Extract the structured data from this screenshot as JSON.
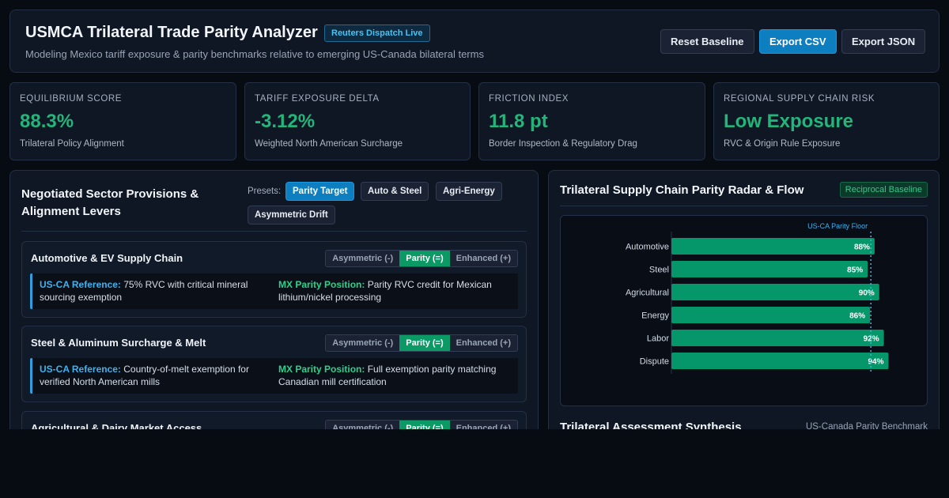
{
  "header": {
    "title": "USMCA Trilateral Trade Parity Analyzer",
    "badge": "Reuters Dispatch Live",
    "subtitle": "Modeling Mexico tariff exposure & parity benchmarks relative to emerging US-Canada bilateral terms",
    "buttons": {
      "reset": "Reset Baseline",
      "export_csv": "Export CSV",
      "export_json": "Export JSON"
    }
  },
  "kpis": [
    {
      "label": "EQUILIBRIUM SCORE",
      "value": "88.3%",
      "desc": "Trilateral Policy Alignment"
    },
    {
      "label": "TARIFF EXPOSURE DELTA",
      "value": "-3.12%",
      "desc": "Weighted North American Surcharge"
    },
    {
      "label": "FRICTION INDEX",
      "value": "11.8 pt",
      "desc": "Border Inspection & Regulatory Drag"
    },
    {
      "label": "REGIONAL SUPPLY CHAIN RISK",
      "value": "Low Exposure",
      "desc": "RVC & Origin Rule Exposure"
    }
  ],
  "levers": {
    "title": "Negotiated Sector Provisions & Alignment Levers",
    "presets_label": "Presets:",
    "presets": [
      "Parity Target",
      "Auto & Steel",
      "Agri-Energy",
      "Asymmetric Drift"
    ],
    "active_preset": "Parity Target",
    "options": [
      "Asymmetric (-)",
      "Parity (=)",
      "Enhanced (+)"
    ],
    "sectors": [
      {
        "title": "Automotive & EV Supply Chain",
        "selected": "Parity (=)",
        "ref_label": "US-CA Reference:",
        "ref_text": " 75% RVC with critical mineral sourcing exemption",
        "mx_label": "MX Parity Position:",
        "mx_text": " Parity RVC credit for Mexican lithium/nickel processing"
      },
      {
        "title": "Steel & Aluminum Surcharge & Melt",
        "selected": "Parity (=)",
        "ref_label": "US-CA Reference:",
        "ref_text": " Country-of-melt exemption for verified North American mills",
        "mx_label": "MX Parity Position:",
        "mx_text": " Full exemption parity matching Canadian mill certification"
      },
      {
        "title": "Agricultural & Dairy Market Access",
        "selected": "Parity (=)",
        "ref_label": "",
        "ref_text": "",
        "mx_label": "",
        "mx_text": ""
      }
    ]
  },
  "radar": {
    "title": "Trilateral Supply Chain Parity Radar & Flow",
    "badge": "Reciprocal Baseline",
    "synthesis_title": "Trilateral Assessment Synthesis",
    "synthesis_tag": "US-Canada Parity Benchmark"
  },
  "chart_data": {
    "type": "bar",
    "orientation": "horizontal",
    "categories": [
      "Automotive",
      "Steel",
      "Agricultural",
      "Energy",
      "Labor",
      "Dispute"
    ],
    "values": [
      88,
      85,
      90,
      86,
      92,
      94
    ],
    "value_labels": [
      "88%",
      "85%",
      "90%",
      "86%",
      "92%",
      "94%"
    ],
    "reference_line": {
      "label": "US-CA Parity Floor",
      "value": 85
    },
    "xlim": [
      0,
      100
    ],
    "bar_color": "#059669",
    "reference_color": "#3fb2ee"
  }
}
